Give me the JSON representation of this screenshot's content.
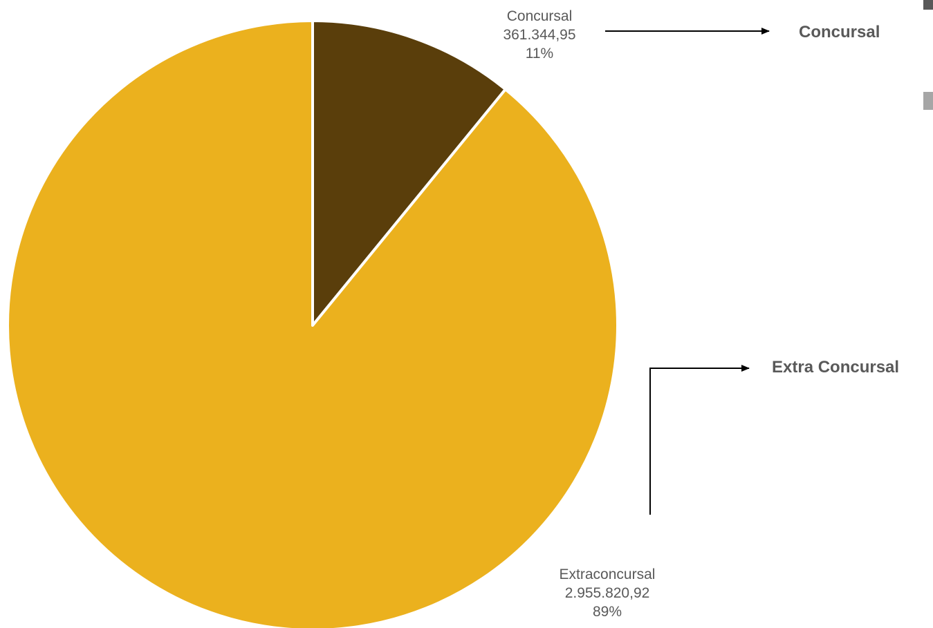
{
  "chart_data": {
    "type": "pie",
    "slices": [
      {
        "label": "Concursal",
        "value": 361344.95,
        "value_text": "361.344,95",
        "percent": "11%",
        "color": "#5a3e0b"
      },
      {
        "label": "Extraconcursal",
        "value": 2955820.92,
        "value_text": "2.955.820,92",
        "percent": "89%",
        "color": "#ebb11e"
      }
    ],
    "start_angle": "12 o'clock",
    "direction": "clockwise",
    "slice_border_color": "#ffffff"
  },
  "annotations": {
    "concursal_callout": "Concursal",
    "extra_concursal_callout": "Extra Concursal",
    "arrow_color": "#000000",
    "callout_color": "#595959"
  },
  "legend": {
    "colors": [
      "#595959",
      "#a6a6a6"
    ]
  }
}
